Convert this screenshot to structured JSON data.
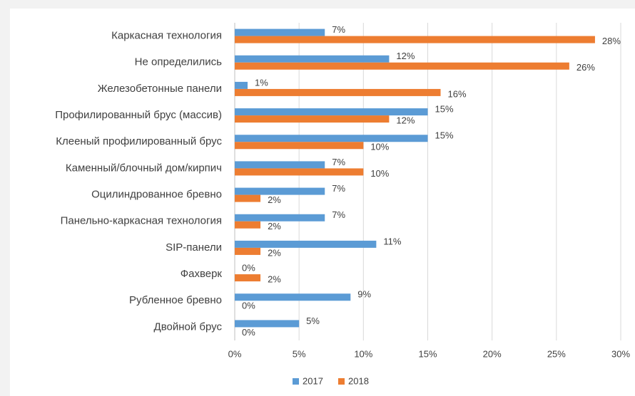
{
  "chart_data": {
    "type": "hbar",
    "categories": [
      "Каркасная технология",
      "Не определились",
      "Железобетонные панели",
      "Профилированный брус (массив)",
      "Клееный профилированный брус",
      "Каменный/блочный дом/кирпич",
      "Оцилиндрованное бревно",
      "Панельно-каркасная технология",
      "SIP-панели",
      "Фахверк",
      "Рубленное бревно",
      "Двойной брус"
    ],
    "series": [
      {
        "name": "2017",
        "color": "#5b9bd5",
        "values": [
          7,
          12,
          1,
          15,
          15,
          7,
          7,
          7,
          11,
          0,
          9,
          5
        ],
        "value_labels": [
          "7%",
          "12%",
          "1%",
          "15%",
          "15%",
          "7%",
          "7%",
          "7%",
          "11%",
          "0%",
          "9%",
          "5%"
        ]
      },
      {
        "name": "2018",
        "color": "#ed7d31",
        "values": [
          28,
          26,
          16,
          12,
          10,
          10,
          2,
          2,
          2,
          2,
          0,
          0
        ],
        "value_labels": [
          "28%",
          "26%",
          "16%",
          "12%",
          "10%",
          "10%",
          "2%",
          "2%",
          "2%",
          "2%",
          "0%",
          "0%"
        ]
      }
    ],
    "xlim": [
      0,
      30
    ],
    "xticks": [
      {
        "value": 0,
        "label": "0%"
      },
      {
        "value": 5,
        "label": "5%"
      },
      {
        "value": 10,
        "label": "10%"
      },
      {
        "value": 15,
        "label": "15%"
      },
      {
        "value": 20,
        "label": "20%"
      },
      {
        "value": 25,
        "label": "25%"
      },
      {
        "value": 30,
        "label": "30%"
      }
    ],
    "grid": true,
    "legend": "bottom"
  }
}
